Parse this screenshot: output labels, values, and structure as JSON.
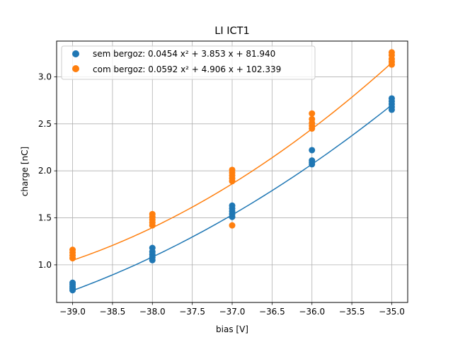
{
  "chart_data": {
    "type": "scatter",
    "title": "LI ICT1",
    "xlabel": "bias [V]",
    "ylabel": "charge [nC]",
    "xlim": [
      -39.2,
      -34.8
    ],
    "ylim": [
      0.6,
      3.38
    ],
    "xticks": [
      -39.0,
      -38.5,
      -38.0,
      -37.5,
      -37.0,
      -36.5,
      -36.0,
      -35.5,
      -35.0
    ],
    "xtick_labels": [
      "−39.0",
      "−38.5",
      "−38.0",
      "−37.5",
      "−37.0",
      "−36.5",
      "−36.0",
      "−35.5",
      "−35.0"
    ],
    "yticks": [
      1.0,
      1.5,
      2.0,
      2.5,
      3.0
    ],
    "ytick_labels": [
      "1.0",
      "1.5",
      "2.0",
      "2.5",
      "3.0"
    ],
    "grid": true,
    "legend_position": "top-left",
    "series": [
      {
        "name": "sem bergoz: 0.0454 x² + 3.853 x + 81.940",
        "color": "#1f77b4",
        "fit": {
          "a": 0.0454,
          "b": 3.853,
          "c": 81.94
        },
        "points": [
          [
            -39,
            0.73
          ],
          [
            -39,
            0.75
          ],
          [
            -39,
            0.77
          ],
          [
            -39,
            0.79
          ],
          [
            -39,
            0.81
          ],
          [
            -38,
            1.05
          ],
          [
            -38,
            1.08
          ],
          [
            -38,
            1.11
          ],
          [
            -38,
            1.14
          ],
          [
            -38,
            1.18
          ],
          [
            -37,
            1.51
          ],
          [
            -37,
            1.54
          ],
          [
            -37,
            1.57
          ],
          [
            -37,
            1.6
          ],
          [
            -37,
            1.63
          ],
          [
            -36,
            2.07
          ],
          [
            -36,
            2.09
          ],
          [
            -36,
            2.11
          ],
          [
            -36,
            2.22
          ],
          [
            -35,
            2.65
          ],
          [
            -35,
            2.68
          ],
          [
            -35,
            2.71
          ],
          [
            -35,
            2.74
          ],
          [
            -35,
            2.77
          ]
        ]
      },
      {
        "name": "com bergoz: 0.0592 x² + 4.906 x + 102.339",
        "color": "#ff7f0e",
        "fit": {
          "a": 0.0592,
          "b": 4.906,
          "c": 102.339
        },
        "points": [
          [
            -39,
            1.07
          ],
          [
            -39,
            1.1
          ],
          [
            -39,
            1.13
          ],
          [
            -39,
            1.16
          ],
          [
            -38,
            1.42
          ],
          [
            -38,
            1.45
          ],
          [
            -38,
            1.48
          ],
          [
            -38,
            1.51
          ],
          [
            -38,
            1.54
          ],
          [
            -37,
            1.42
          ],
          [
            -37,
            1.89
          ],
          [
            -37,
            1.92
          ],
          [
            -37,
            1.95
          ],
          [
            -37,
            1.98
          ],
          [
            -37,
            2.01
          ],
          [
            -36,
            2.45
          ],
          [
            -36,
            2.48
          ],
          [
            -36,
            2.51
          ],
          [
            -36,
            2.55
          ],
          [
            -36,
            2.61
          ],
          [
            -35,
            3.13
          ],
          [
            -35,
            3.16
          ],
          [
            -35,
            3.19
          ],
          [
            -35,
            3.23
          ],
          [
            -35,
            3.26
          ]
        ]
      }
    ]
  }
}
